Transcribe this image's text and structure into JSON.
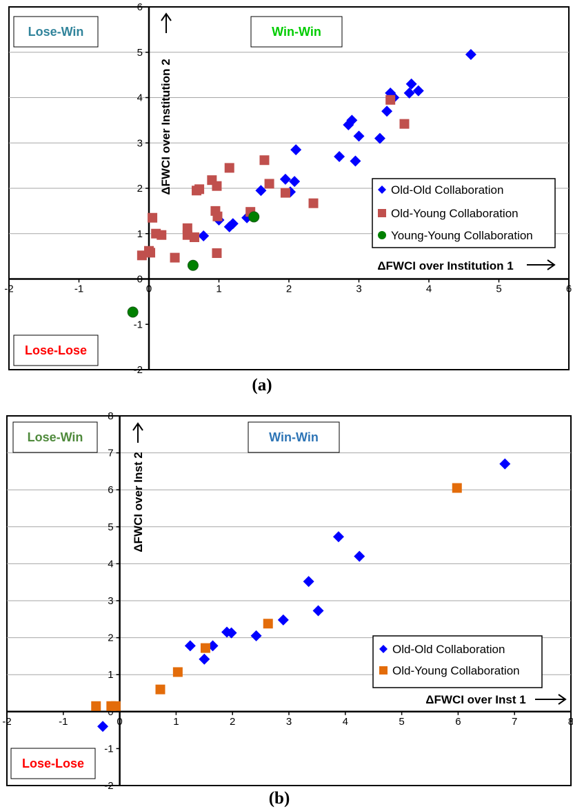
{
  "chart_data": [
    {
      "type": "scatter",
      "caption": "(a)",
      "xlabel": "ΔFWCI over Institution 1",
      "ylabel": "ΔFWCI over Institution 2",
      "xlim": [
        -2,
        6
      ],
      "ylim": [
        -2,
        6
      ],
      "xticks": [
        "-2",
        "-1",
        "0",
        "1",
        "2",
        "3",
        "4",
        "5",
        "6"
      ],
      "yticks": [
        "-2",
        "-1",
        "0",
        "1",
        "2",
        "3",
        "4",
        "5",
        "6"
      ],
      "quadrant_labels": [
        {
          "text": "Lose-Win",
          "color": "#31849B"
        },
        {
          "text": "Win-Win",
          "color": "#00CC00"
        },
        {
          "text": "Lose-Lose",
          "color": "#FF0000"
        }
      ],
      "legend_position": "right",
      "series": [
        {
          "name": "Old-Old Collaboration",
          "marker": "diamond",
          "color": "#0000FF",
          "points": [
            [
              4.6,
              4.95
            ],
            [
              3.75,
              4.3
            ],
            [
              3.85,
              4.15
            ],
            [
              3.72,
              4.1
            ],
            [
              3.45,
              4.1
            ],
            [
              3.5,
              4.0
            ],
            [
              3.4,
              3.7
            ],
            [
              2.9,
              3.5
            ],
            [
              2.85,
              3.4
            ],
            [
              3.0,
              3.15
            ],
            [
              3.3,
              3.1
            ],
            [
              2.1,
              2.85
            ],
            [
              2.72,
              2.7
            ],
            [
              2.95,
              2.6
            ],
            [
              1.95,
              2.2
            ],
            [
              2.08,
              2.15
            ],
            [
              1.6,
              1.95
            ],
            [
              2.02,
              1.92
            ],
            [
              1.0,
              1.3
            ],
            [
              1.2,
              1.22
            ],
            [
              1.15,
              1.15
            ],
            [
              1.4,
              1.35
            ],
            [
              0.78,
              0.95
            ]
          ]
        },
        {
          "name": "Old-Young Collaboration",
          "marker": "square",
          "color": "#C0504D",
          "points": [
            [
              3.45,
              3.95
            ],
            [
              3.65,
              3.42
            ],
            [
              1.65,
              2.62
            ],
            [
              1.15,
              2.45
            ],
            [
              0.9,
              2.18
            ],
            [
              0.97,
              2.05
            ],
            [
              1.72,
              2.1
            ],
            [
              0.72,
              1.98
            ],
            [
              0.68,
              1.95
            ],
            [
              1.95,
              1.9
            ],
            [
              2.35,
              1.67
            ],
            [
              0.95,
              1.5
            ],
            [
              1.45,
              1.48
            ],
            [
              0.98,
              1.38
            ],
            [
              0.05,
              1.35
            ],
            [
              0.55,
              1.12
            ],
            [
              0.1,
              1.0
            ],
            [
              0.18,
              0.97
            ],
            [
              0.55,
              0.97
            ],
            [
              0.65,
              0.92
            ],
            [
              0.0,
              0.62
            ],
            [
              0.02,
              0.58
            ],
            [
              -0.1,
              0.52
            ],
            [
              0.37,
              0.47
            ],
            [
              0.97,
              0.57
            ]
          ]
        },
        {
          "name": "Young-Young Collaboration",
          "marker": "circle",
          "color": "#008000",
          "points": [
            [
              1.5,
              1.37
            ],
            [
              0.63,
              0.3
            ],
            [
              -0.23,
              -0.73
            ]
          ]
        }
      ]
    },
    {
      "type": "scatter",
      "caption": "(b)",
      "xlabel": "ΔFWCI over Inst 1",
      "ylabel": "ΔFWCI over Inst 2",
      "xlim": [
        -2,
        8
      ],
      "ylim": [
        -2,
        8
      ],
      "xticks": [
        "-2",
        "-1",
        "0",
        "1",
        "2",
        "3",
        "4",
        "5",
        "6",
        "7",
        "8"
      ],
      "yticks": [
        "-2",
        "-1",
        "0",
        "1",
        "2",
        "3",
        "4",
        "5",
        "6",
        "7",
        "8"
      ],
      "quadrant_labels": [
        {
          "text": "Lose-Win",
          "color": "#4F8A3C"
        },
        {
          "text": "Win-Win",
          "color": "#2E75B6"
        },
        {
          "text": "Lose-Lose",
          "color": "#FF0000"
        }
      ],
      "legend_position": "right",
      "series": [
        {
          "name": "Old-Old Collaboration",
          "marker": "diamond",
          "color": "#0000FF",
          "points": [
            [
              6.83,
              6.7
            ],
            [
              3.88,
              4.73
            ],
            [
              4.25,
              4.2
            ],
            [
              3.35,
              3.52
            ],
            [
              3.52,
              2.73
            ],
            [
              2.9,
              2.48
            ],
            [
              1.9,
              2.15
            ],
            [
              1.98,
              2.13
            ],
            [
              2.42,
              2.05
            ],
            [
              1.25,
              1.78
            ],
            [
              1.65,
              1.78
            ],
            [
              1.5,
              1.42
            ],
            [
              -0.3,
              -0.4
            ]
          ]
        },
        {
          "name": "Old-Young Collaboration",
          "marker": "square",
          "color": "#E36C0A",
          "points": [
            [
              5.98,
              6.05
            ],
            [
              2.63,
              2.38
            ],
            [
              1.52,
              1.72
            ],
            [
              1.03,
              1.07
            ],
            [
              0.72,
              0.6
            ],
            [
              -0.42,
              0.15
            ],
            [
              -0.15,
              0.15
            ],
            [
              -0.07,
              0.15
            ]
          ]
        }
      ]
    }
  ]
}
